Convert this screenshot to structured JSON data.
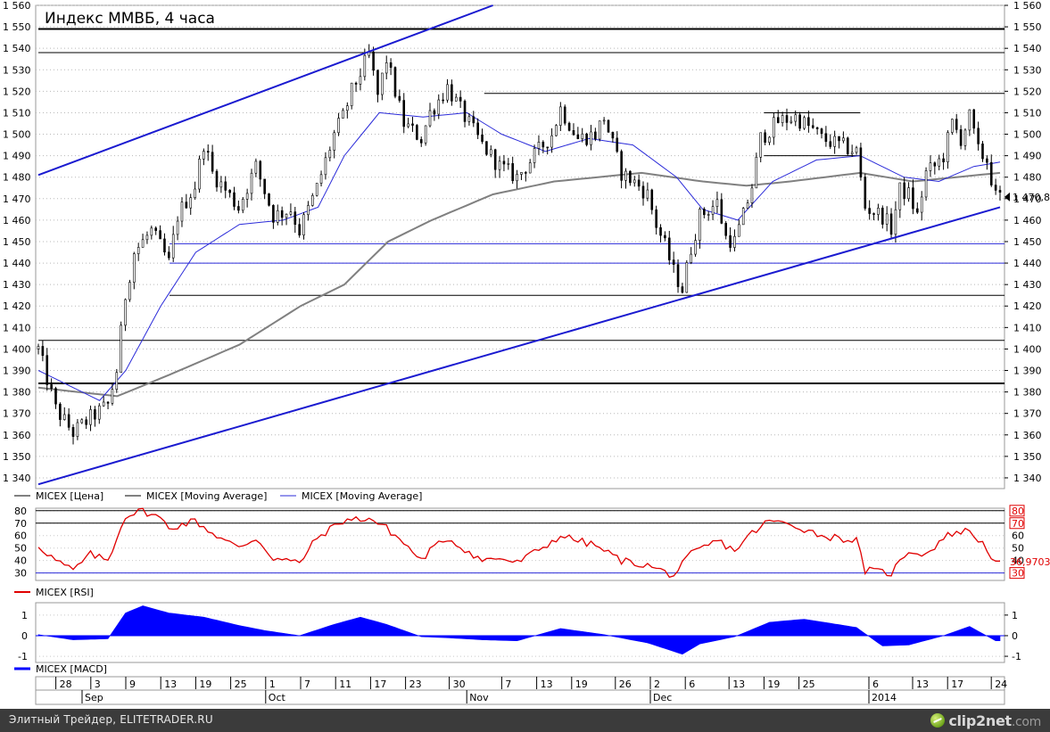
{
  "chart": {
    "title": "Индекс ММВБ, 4 часа",
    "price_axis": {
      "min": 1335,
      "max": 1560,
      "step": 10,
      "ticks": [
        "1 560",
        "1 550",
        "1 540",
        "1 530",
        "1 520",
        "1 510",
        "1 500",
        "1 490",
        "1 480",
        "1 470",
        "1 460",
        "1 450",
        "1 440",
        "1 430",
        "1 420",
        "1 410",
        "1 400",
        "1 390",
        "1 380",
        "1 370",
        "1 360",
        "1 350",
        "1 340"
      ],
      "last_value_label": "1 470,8"
    },
    "legend": [
      {
        "label": "MICEX [Цена]",
        "color": "#000000"
      },
      {
        "label": "MICEX [Moving Average]",
        "color": "#808080"
      },
      {
        "label": "MICEX [Moving Average]",
        "color": "#2b2bd9"
      }
    ],
    "rsi_panel": {
      "legend": {
        "label": "MICEX [RSI]",
        "color": "#e00000"
      },
      "axis_ticks": [
        "80",
        "70",
        "60",
        "50",
        "40",
        "30"
      ],
      "highlighted_ticks": [
        "80",
        "70",
        "30"
      ],
      "last_value_label": "36,9703"
    },
    "macd_panel": {
      "legend": {
        "label": "MICEX [MACD]",
        "color": "#0000ff"
      },
      "axis_ticks": [
        "1",
        "0",
        "-1"
      ]
    },
    "date_axis": {
      "days": [
        "28",
        "3",
        "9",
        "13",
        "19",
        "25",
        "1",
        "7",
        "11",
        "17",
        "23",
        "30",
        "7",
        "13",
        "19",
        "26",
        "2",
        "6",
        "13",
        "19",
        "25",
        "6",
        "13",
        "17",
        "24"
      ],
      "months": [
        "Sep",
        "Oct",
        "Nov",
        "Dec",
        "2014"
      ]
    }
  },
  "chart_data": {
    "type": "candlestick",
    "timeframe": "4h",
    "x_range": [
      "2013-08-26",
      "2014-01-27"
    ],
    "ylim": [
      1335,
      1560
    ],
    "last_close": 1470.8,
    "price_anchors": [
      {
        "date": "2013-08-26",
        "close": 1400
      },
      {
        "date": "2013-08-28",
        "close": 1372
      },
      {
        "date": "2013-08-30",
        "close": 1361
      },
      {
        "date": "2013-09-03",
        "close": 1368
      },
      {
        "date": "2013-09-05",
        "close": 1374
      },
      {
        "date": "2013-09-06",
        "close": 1390
      },
      {
        "date": "2013-09-09",
        "close": 1425
      },
      {
        "date": "2013-09-10",
        "close": 1445
      },
      {
        "date": "2013-09-12",
        "close": 1455
      },
      {
        "date": "2013-09-13",
        "close": 1448
      },
      {
        "date": "2013-09-16",
        "close": 1440
      },
      {
        "date": "2013-09-17",
        "close": 1462
      },
      {
        "date": "2013-09-19",
        "close": 1476
      },
      {
        "date": "2013-09-20",
        "close": 1496
      },
      {
        "date": "2013-09-23",
        "close": 1482
      },
      {
        "date": "2013-09-26",
        "close": 1466
      },
      {
        "date": "2013-09-30",
        "close": 1485
      },
      {
        "date": "2013-10-02",
        "close": 1462
      },
      {
        "date": "2013-10-04",
        "close": 1465
      },
      {
        "date": "2013-10-07",
        "close": 1455
      },
      {
        "date": "2013-10-09",
        "close": 1475
      },
      {
        "date": "2013-10-11",
        "close": 1500
      },
      {
        "date": "2013-10-14",
        "close": 1508
      },
      {
        "date": "2013-10-15",
        "close": 1520
      },
      {
        "date": "2013-10-17",
        "close": 1537
      },
      {
        "date": "2013-10-18",
        "close": 1518
      },
      {
        "date": "2013-10-21",
        "close": 1535
      },
      {
        "date": "2013-10-23",
        "close": 1505
      },
      {
        "date": "2013-10-25",
        "close": 1498
      },
      {
        "date": "2013-10-28",
        "close": 1510
      },
      {
        "date": "2013-10-30",
        "close": 1522
      },
      {
        "date": "2013-11-01",
        "close": 1508
      },
      {
        "date": "2013-11-05",
        "close": 1495
      },
      {
        "date": "2013-11-07",
        "close": 1485
      },
      {
        "date": "2013-11-11",
        "close": 1480
      },
      {
        "date": "2013-11-13",
        "close": 1490
      },
      {
        "date": "2013-11-15",
        "close": 1500
      },
      {
        "date": "2013-11-18",
        "close": 1512
      },
      {
        "date": "2013-11-20",
        "close": 1498
      },
      {
        "date": "2013-11-22",
        "close": 1500
      },
      {
        "date": "2013-11-25",
        "close": 1508
      },
      {
        "date": "2013-11-27",
        "close": 1482
      },
      {
        "date": "2013-11-29",
        "close": 1476
      },
      {
        "date": "2013-12-02",
        "close": 1472
      },
      {
        "date": "2013-12-03",
        "close": 1458
      },
      {
        "date": "2013-12-04",
        "close": 1448
      },
      {
        "date": "2013-12-05",
        "close": 1436
      },
      {
        "date": "2013-12-06",
        "close": 1428
      },
      {
        "date": "2013-12-09",
        "close": 1447
      },
      {
        "date": "2013-12-10",
        "close": 1462
      },
      {
        "date": "2013-12-12",
        "close": 1468
      },
      {
        "date": "2013-12-13",
        "close": 1452
      },
      {
        "date": "2013-12-16",
        "close": 1450
      },
      {
        "date": "2013-12-17",
        "close": 1462
      },
      {
        "date": "2013-12-18",
        "close": 1476
      },
      {
        "date": "2013-12-19",
        "close": 1498
      },
      {
        "date": "2013-12-20",
        "close": 1502
      },
      {
        "date": "2013-12-23",
        "close": 1506
      },
      {
        "date": "2013-12-25",
        "close": 1508
      },
      {
        "date": "2013-12-27",
        "close": 1502
      },
      {
        "date": "2013-12-30",
        "close": 1498
      },
      {
        "date": "2014-01-03",
        "close": 1492
      },
      {
        "date": "2014-01-06",
        "close": 1466
      },
      {
        "date": "2014-01-08",
        "close": 1462
      },
      {
        "date": "2014-01-09",
        "close": 1456
      },
      {
        "date": "2014-01-10",
        "close": 1474
      },
      {
        "date": "2014-01-13",
        "close": 1472
      },
      {
        "date": "2014-01-14",
        "close": 1462
      },
      {
        "date": "2014-01-15",
        "close": 1482
      },
      {
        "date": "2014-01-16",
        "close": 1485
      },
      {
        "date": "2014-01-17",
        "close": 1490
      },
      {
        "date": "2014-01-20",
        "close": 1505
      },
      {
        "date": "2014-01-21",
        "close": 1498
      },
      {
        "date": "2014-01-22",
        "close": 1508
      },
      {
        "date": "2014-01-23",
        "close": 1492
      },
      {
        "date": "2014-01-24",
        "close": 1488
      },
      {
        "date": "2014-01-27",
        "close": 1470.8
      }
    ],
    "ma_slow": [
      {
        "date": "2013-08-26",
        "value": 1382
      },
      {
        "date": "2013-09-06",
        "value": 1378
      },
      {
        "date": "2013-09-16",
        "value": 1388
      },
      {
        "date": "2013-09-26",
        "value": 1402
      },
      {
        "date": "2013-10-07",
        "value": 1420
      },
      {
        "date": "2013-10-14",
        "value": 1430
      },
      {
        "date": "2013-10-21",
        "value": 1450
      },
      {
        "date": "2013-10-28",
        "value": 1460
      },
      {
        "date": "2013-11-06",
        "value": 1472
      },
      {
        "date": "2013-11-15",
        "value": 1478
      },
      {
        "date": "2013-11-29",
        "value": 1482
      },
      {
        "date": "2013-12-10",
        "value": 1478
      },
      {
        "date": "2013-12-17",
        "value": 1476
      },
      {
        "date": "2013-12-24",
        "value": 1478
      },
      {
        "date": "2014-01-03",
        "value": 1482
      },
      {
        "date": "2014-01-13",
        "value": 1478
      },
      {
        "date": "2014-01-20",
        "value": 1480
      },
      {
        "date": "2014-01-27",
        "value": 1482
      }
    ],
    "ma_fast": [
      {
        "date": "2013-08-26",
        "value": 1390
      },
      {
        "date": "2013-09-04",
        "value": 1376
      },
      {
        "date": "2013-09-09",
        "value": 1390
      },
      {
        "date": "2013-09-13",
        "value": 1420
      },
      {
        "date": "2013-09-19",
        "value": 1445
      },
      {
        "date": "2013-09-26",
        "value": 1458
      },
      {
        "date": "2013-10-03",
        "value": 1460
      },
      {
        "date": "2013-10-09",
        "value": 1466
      },
      {
        "date": "2013-10-14",
        "value": 1490
      },
      {
        "date": "2013-10-18",
        "value": 1510
      },
      {
        "date": "2013-10-25",
        "value": 1508
      },
      {
        "date": "2013-11-01",
        "value": 1510
      },
      {
        "date": "2013-11-07",
        "value": 1500
      },
      {
        "date": "2013-11-14",
        "value": 1492
      },
      {
        "date": "2013-11-21",
        "value": 1498
      },
      {
        "date": "2013-11-28",
        "value": 1495
      },
      {
        "date": "2013-12-05",
        "value": 1480
      },
      {
        "date": "2013-12-10",
        "value": 1465
      },
      {
        "date": "2013-12-16",
        "value": 1460
      },
      {
        "date": "2013-12-20",
        "value": 1478
      },
      {
        "date": "2013-12-27",
        "value": 1488
      },
      {
        "date": "2014-01-03",
        "value": 1490
      },
      {
        "date": "2014-01-10",
        "value": 1480
      },
      {
        "date": "2014-01-16",
        "value": 1478
      },
      {
        "date": "2014-01-22",
        "value": 1485
      },
      {
        "date": "2014-01-27",
        "value": 1487
      }
    ],
    "horizontal_levels": [
      {
        "value": 1549,
        "color": "#000000",
        "from": "2013-08-26",
        "to": "2014-01-27",
        "bold": true
      },
      {
        "value": 1538,
        "color": "#000000",
        "from": "2013-08-26",
        "to": "2014-01-27"
      },
      {
        "value": 1519,
        "color": "#000000",
        "from": "2013-11-05",
        "to": "2014-01-27"
      },
      {
        "value": 1510,
        "color": "#000000",
        "from": "2013-12-19",
        "to": "2014-01-03"
      },
      {
        "value": 1490,
        "color": "#000000",
        "from": "2013-12-19",
        "to": "2014-01-03"
      },
      {
        "value": 1449,
        "color": "#2b2bd9",
        "from": "2013-09-16",
        "to": "2014-01-27"
      },
      {
        "value": 1440,
        "color": "#2b2bd9",
        "from": "2013-09-16",
        "to": "2014-01-27"
      },
      {
        "value": 1425,
        "color": "#000000",
        "from": "2013-09-16",
        "to": "2014-01-27"
      },
      {
        "value": 1404,
        "color": "#000000",
        "from": "2013-08-26",
        "to": "2014-01-27"
      },
      {
        "value": 1384,
        "color": "#000000",
        "from": "2013-08-26",
        "to": "2014-01-27",
        "bold": true
      }
    ],
    "trend_lines": [
      {
        "color": "#1a1ad0",
        "from": {
          "date": "2013-08-26",
          "value": 1481
        },
        "to": {
          "date": "2013-11-06",
          "value": 1560
        }
      },
      {
        "color": "#1a1ad0",
        "from": {
          "date": "2013-08-26",
          "value": 1337
        },
        "to": {
          "date": "2014-01-27",
          "value": 1466
        }
      }
    ],
    "rsi": {
      "ylim": [
        24,
        82
      ],
      "levels": [
        80,
        70,
        30
      ],
      "last": 36.97,
      "points": [
        {
          "date": "2013-08-26",
          "value": 52
        },
        {
          "date": "2013-08-28",
          "value": 40
        },
        {
          "date": "2013-08-30",
          "value": 32
        },
        {
          "date": "2013-09-03",
          "value": 45
        },
        {
          "date": "2013-09-05",
          "value": 40
        },
        {
          "date": "2013-09-06",
          "value": 58
        },
        {
          "date": "2013-09-09",
          "value": 76
        },
        {
          "date": "2013-09-11",
          "value": 80
        },
        {
          "date": "2013-09-13",
          "value": 74
        },
        {
          "date": "2013-09-16",
          "value": 66
        },
        {
          "date": "2013-09-19",
          "value": 72
        },
        {
          "date": "2013-09-23",
          "value": 62
        },
        {
          "date": "2013-09-26",
          "value": 50
        },
        {
          "date": "2013-09-30",
          "value": 58
        },
        {
          "date": "2013-10-02",
          "value": 42
        },
        {
          "date": "2013-10-07",
          "value": 38
        },
        {
          "date": "2013-10-09",
          "value": 58
        },
        {
          "date": "2013-10-14",
          "value": 72
        },
        {
          "date": "2013-10-17",
          "value": 74
        },
        {
          "date": "2013-10-21",
          "value": 66
        },
        {
          "date": "2013-10-23",
          "value": 54
        },
        {
          "date": "2013-10-25",
          "value": 40
        },
        {
          "date": "2013-10-28",
          "value": 48
        },
        {
          "date": "2013-10-30",
          "value": 58
        },
        {
          "date": "2013-11-05",
          "value": 40
        },
        {
          "date": "2013-11-07",
          "value": 42
        },
        {
          "date": "2013-11-11",
          "value": 38
        },
        {
          "date": "2013-11-15",
          "value": 55
        },
        {
          "date": "2013-11-18",
          "value": 60
        },
        {
          "date": "2013-11-22",
          "value": 52
        },
        {
          "date": "2013-11-27",
          "value": 40
        },
        {
          "date": "2013-12-02",
          "value": 36
        },
        {
          "date": "2013-12-05",
          "value": 28
        },
        {
          "date": "2013-12-09",
          "value": 45
        },
        {
          "date": "2013-12-12",
          "value": 56
        },
        {
          "date": "2013-12-16",
          "value": 48
        },
        {
          "date": "2013-12-18",
          "value": 62
        },
        {
          "date": "2013-12-20",
          "value": 72
        },
        {
          "date": "2013-12-25",
          "value": 68
        },
        {
          "date": "2013-12-30",
          "value": 60
        },
        {
          "date": "2014-01-03",
          "value": 56
        },
        {
          "date": "2014-01-06",
          "value": 32
        },
        {
          "date": "2014-01-09",
          "value": 30
        },
        {
          "date": "2014-01-13",
          "value": 48
        },
        {
          "date": "2014-01-15",
          "value": 45
        },
        {
          "date": "2014-01-17",
          "value": 58
        },
        {
          "date": "2014-01-20",
          "value": 62
        },
        {
          "date": "2014-01-22",
          "value": 64
        },
        {
          "date": "2014-01-24",
          "value": 50
        },
        {
          "date": "2014-01-27",
          "value": 37
        }
      ]
    },
    "macd": {
      "ylim": [
        -1.3,
        1.6
      ],
      "points": [
        {
          "date": "2013-08-26",
          "value": 0.05
        },
        {
          "date": "2013-08-30",
          "value": -0.2
        },
        {
          "date": "2013-09-05",
          "value": -0.15
        },
        {
          "date": "2013-09-09",
          "value": 1.1
        },
        {
          "date": "2013-09-11",
          "value": 1.45
        },
        {
          "date": "2013-09-16",
          "value": 1.1
        },
        {
          "date": "2013-09-20",
          "value": 0.9
        },
        {
          "date": "2013-09-26",
          "value": 0.5
        },
        {
          "date": "2013-10-01",
          "value": 0.25
        },
        {
          "date": "2013-10-07",
          "value": 0.0
        },
        {
          "date": "2013-10-11",
          "value": 0.55
        },
        {
          "date": "2013-10-16",
          "value": 0.9
        },
        {
          "date": "2013-10-21",
          "value": 0.55
        },
        {
          "date": "2013-10-25",
          "value": -0.05
        },
        {
          "date": "2013-10-30",
          "value": -0.1
        },
        {
          "date": "2013-11-05",
          "value": -0.2
        },
        {
          "date": "2013-11-11",
          "value": -0.25
        },
        {
          "date": "2013-11-18",
          "value": 0.35
        },
        {
          "date": "2013-11-25",
          "value": 0.05
        },
        {
          "date": "2013-12-02",
          "value": -0.35
        },
        {
          "date": "2013-12-06",
          "value": -0.9
        },
        {
          "date": "2013-12-10",
          "value": -0.4
        },
        {
          "date": "2013-12-16",
          "value": -0.05
        },
        {
          "date": "2013-12-20",
          "value": 0.65
        },
        {
          "date": "2013-12-26",
          "value": 0.8
        },
        {
          "date": "2014-01-03",
          "value": 0.4
        },
        {
          "date": "2014-01-08",
          "value": -0.5
        },
        {
          "date": "2014-01-13",
          "value": -0.45
        },
        {
          "date": "2014-01-17",
          "value": 0.0
        },
        {
          "date": "2014-01-22",
          "value": 0.45
        },
        {
          "date": "2014-01-27",
          "value": -0.25
        }
      ]
    }
  },
  "footer": {
    "left_text": "Элитный Трейдер, ELITETRADER.RU",
    "logo": "clip2net",
    "logo_suffix": ".com",
    "logo_icon": "clip2net-ball-icon"
  }
}
